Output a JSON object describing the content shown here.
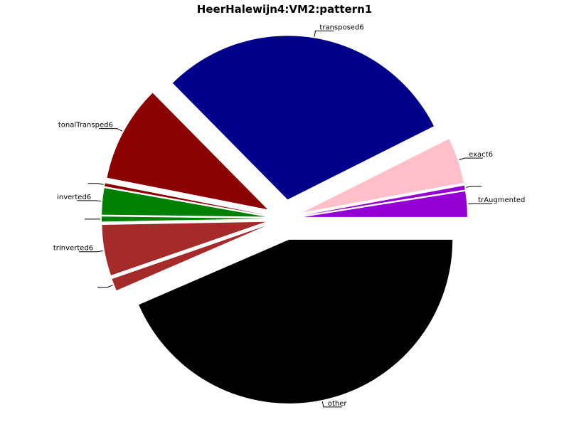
{
  "chart_data": {
    "type": "pie",
    "title": "HeerHalewijn4:VM2:pattern1",
    "slices": [
      {
        "label": "trAugmented",
        "value": 2.5,
        "color": "#9400D3",
        "explode": 1.08
      },
      {
        "label": "",
        "value": 0.4,
        "color": "#9400D3",
        "explode": 1.08
      },
      {
        "label": "exact6",
        "value": 4.5,
        "color": "#FFC0CB",
        "explode": 1.08
      },
      {
        "label": "transposed6",
        "value": 30.0,
        "color": "#00008B",
        "explode": 1.08
      },
      {
        "label": "tonalTransped6",
        "value": 9.5,
        "color": "#8B0000",
        "explode": 1.08
      },
      {
        "label": "",
        "value": 0.3,
        "color": "#8B0000",
        "explode": 1.08
      },
      {
        "label": "inverted6",
        "value": 2.6,
        "color": "#008000",
        "explode": 1.08
      },
      {
        "label": "",
        "value": 0.5,
        "color": "#008000",
        "explode": 1.08
      },
      {
        "label": "trInverted6",
        "value": 5.0,
        "color": "#A52A2A",
        "explode": 1.08
      },
      {
        "label": "",
        "value": 1.2,
        "color": "#A52A2A",
        "explode": 1.08
      },
      {
        "label": "other",
        "value": 43.5,
        "color": "#000000",
        "explode": 1.22
      }
    ],
    "legend": "none",
    "grid": false
  }
}
